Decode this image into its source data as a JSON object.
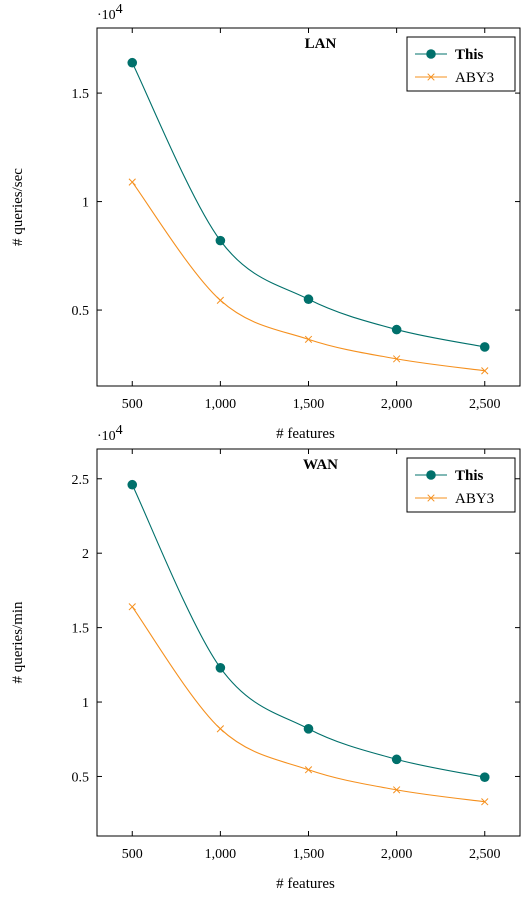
{
  "chart_data": [
    {
      "type": "line",
      "title": "LAN",
      "xlabel": "# features",
      "ylabel": "# queries/sec",
      "y_multiplier": "·10",
      "y_multiplier_exp": "4",
      "x": [
        500,
        1000,
        1500,
        2000,
        2500
      ],
      "x_tick_labels": [
        "500",
        "1,000",
        "1,500",
        "2,000",
        "2,500"
      ],
      "y_ticks": [
        0.5,
        1,
        1.5
      ],
      "y_tick_labels": [
        "0.5",
        "1",
        "1.5"
      ],
      "xlim": [
        300,
        2700
      ],
      "ylim": [
        0.15,
        1.8
      ],
      "legend_position": "top-right",
      "series": [
        {
          "name": "This",
          "color": "#00706b",
          "marker": "circle",
          "bold_label": true,
          "values": [
            1.64,
            0.82,
            0.55,
            0.41,
            0.33
          ]
        },
        {
          "name": "ABY3",
          "color": "#f5901e",
          "marker": "x",
          "bold_label": false,
          "values": [
            1.09,
            0.545,
            0.365,
            0.275,
            0.22
          ]
        }
      ]
    },
    {
      "type": "line",
      "title": "WAN",
      "xlabel": "# features",
      "ylabel": "# queries/min",
      "y_multiplier": "·10",
      "y_multiplier_exp": "4",
      "x": [
        500,
        1000,
        1500,
        2000,
        2500
      ],
      "x_tick_labels": [
        "500",
        "1,000",
        "1,500",
        "2,000",
        "2,500"
      ],
      "y_ticks": [
        0.5,
        1,
        1.5,
        2,
        2.5
      ],
      "y_tick_labels": [
        "0.5",
        "1",
        "1.5",
        "2",
        "2.5"
      ],
      "xlim": [
        300,
        2700
      ],
      "ylim": [
        0.1,
        2.7
      ],
      "legend_position": "top-right",
      "series": [
        {
          "name": "This",
          "color": "#00706b",
          "marker": "circle",
          "bold_label": true,
          "values": [
            2.46,
            1.23,
            0.82,
            0.615,
            0.495
          ]
        },
        {
          "name": "ABY3",
          "color": "#f5901e",
          "marker": "x",
          "bold_label": false,
          "values": [
            1.64,
            0.82,
            0.545,
            0.41,
            0.33
          ]
        }
      ]
    }
  ]
}
